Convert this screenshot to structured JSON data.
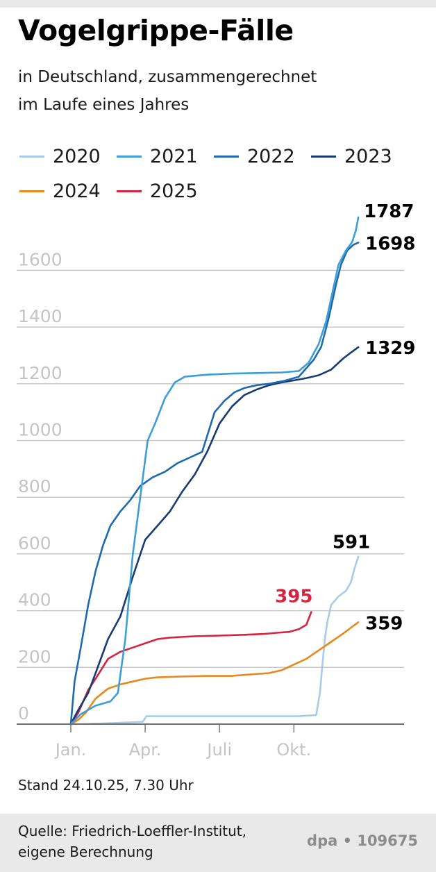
{
  "title": "Vogelgrippe-Fälle",
  "subtitle_line1": "in Deutschland, zusammengerechnet",
  "subtitle_line2": "im Laufe eines Jahres",
  "stand": "Stand 24.10.25, 7.30 Uhr",
  "source_line1": "Quelle: Friedrich-Loeffler-Institut,",
  "source_line2": "eigene Berechnung",
  "credit": "dpa • 109675",
  "chart_data": {
    "type": "line",
    "x_unit": "month",
    "xlim": [
      1,
      13
    ],
    "ylim": [
      0,
      1800
    ],
    "grid": true,
    "legend_placement": "top",
    "x_ticks": [
      {
        "label": "Jan.",
        "value": 1
      },
      {
        "label": "Apr.",
        "value": 4
      },
      {
        "label": "Juli",
        "value": 7
      },
      {
        "label": "Okt.",
        "value": 10
      }
    ],
    "y_ticks": [
      0,
      200,
      400,
      600,
      800,
      1000,
      1200,
      1400,
      1600
    ],
    "series": [
      {
        "name": "2020",
        "color": "#a9cbea",
        "end_label": "591",
        "end_label_color": "#000000",
        "points": [
          [
            1,
            0
          ],
          [
            2.2,
            2
          ],
          [
            3,
            5
          ],
          [
            3.9,
            8
          ],
          [
            4.05,
            28
          ],
          [
            5,
            28
          ],
          [
            7,
            28
          ],
          [
            9,
            28
          ],
          [
            10.2,
            28
          ],
          [
            10.9,
            32
          ],
          [
            11.05,
            110
          ],
          [
            11.15,
            210
          ],
          [
            11.25,
            300
          ],
          [
            11.35,
            360
          ],
          [
            11.5,
            420
          ],
          [
            11.8,
            450
          ],
          [
            12.1,
            470
          ],
          [
            12.3,
            500
          ],
          [
            12.45,
            550
          ],
          [
            12.6,
            591
          ]
        ]
      },
      {
        "name": "2021",
        "color": "#3a9fd8",
        "end_label": "",
        "end_label_color": "#000000",
        "points": [
          [
            1,
            0
          ],
          [
            1.4,
            35
          ],
          [
            2,
            65
          ],
          [
            2.6,
            80
          ],
          [
            2.9,
            110
          ],
          [
            3.2,
            300
          ],
          [
            3.5,
            600
          ],
          [
            3.8,
            800
          ],
          [
            4.1,
            1000
          ],
          [
            4.4,
            1060
          ],
          [
            4.8,
            1150
          ],
          [
            5.2,
            1205
          ],
          [
            5.6,
            1225
          ],
          [
            6.5,
            1232
          ],
          [
            7.5,
            1236
          ],
          [
            8.5,
            1238
          ],
          [
            9.5,
            1240
          ],
          [
            10.2,
            1245
          ],
          [
            10.6,
            1275
          ],
          [
            11,
            1340
          ],
          [
            11.3,
            1420
          ],
          [
            11.55,
            1520
          ],
          [
            11.8,
            1620
          ],
          [
            12.1,
            1670
          ],
          [
            12.35,
            1700
          ],
          [
            12.5,
            1740
          ],
          [
            12.6,
            1787
          ]
        ]
      },
      {
        "name": "2022",
        "color": "#1f69b0",
        "end_label": "1698",
        "end_label_color": "#000000",
        "points": [
          [
            1,
            0
          ],
          [
            1.15,
            150
          ],
          [
            1.4,
            270
          ],
          [
            1.7,
            420
          ],
          [
            2,
            540
          ],
          [
            2.3,
            630
          ],
          [
            2.6,
            700
          ],
          [
            3,
            750
          ],
          [
            3.4,
            790
          ],
          [
            3.8,
            840
          ],
          [
            4.3,
            870
          ],
          [
            4.8,
            890
          ],
          [
            5.3,
            920
          ],
          [
            5.8,
            940
          ],
          [
            6.3,
            960
          ],
          [
            6.8,
            1100
          ],
          [
            7.2,
            1140
          ],
          [
            7.6,
            1170
          ],
          [
            8,
            1185
          ],
          [
            8.5,
            1195
          ],
          [
            9,
            1200
          ],
          [
            9.6,
            1210
          ],
          [
            10.2,
            1225
          ],
          [
            10.8,
            1285
          ],
          [
            11.1,
            1330
          ],
          [
            11.4,
            1430
          ],
          [
            11.7,
            1550
          ],
          [
            11.9,
            1620
          ],
          [
            12.15,
            1670
          ],
          [
            12.4,
            1690
          ],
          [
            12.6,
            1698
          ]
        ]
      },
      {
        "name": "2023",
        "color": "#173a73",
        "end_label": "1329",
        "end_label_color": "#000000",
        "points": [
          [
            1,
            0
          ],
          [
            1.3,
            50
          ],
          [
            1.7,
            110
          ],
          [
            2,
            180
          ],
          [
            2.5,
            300
          ],
          [
            3,
            380
          ],
          [
            3.5,
            520
          ],
          [
            4,
            650
          ],
          [
            4.5,
            700
          ],
          [
            5,
            750
          ],
          [
            5.5,
            820
          ],
          [
            6,
            880
          ],
          [
            6.5,
            960
          ],
          [
            7,
            1060
          ],
          [
            7.5,
            1120
          ],
          [
            8,
            1160
          ],
          [
            8.5,
            1180
          ],
          [
            9,
            1195
          ],
          [
            9.5,
            1205
          ],
          [
            10,
            1212
          ],
          [
            10.5,
            1220
          ],
          [
            11,
            1230
          ],
          [
            11.5,
            1250
          ],
          [
            12,
            1290
          ],
          [
            12.3,
            1310
          ],
          [
            12.6,
            1329
          ]
        ]
      },
      {
        "name": "2024",
        "color": "#e8891e",
        "end_label": "359",
        "end_label_color": "#000000",
        "points": [
          [
            1,
            0
          ],
          [
            1.3,
            15
          ],
          [
            1.6,
            40
          ],
          [
            2,
            90
          ],
          [
            2.5,
            125
          ],
          [
            3,
            140
          ],
          [
            3.5,
            150
          ],
          [
            4,
            160
          ],
          [
            4.5,
            165
          ],
          [
            5.5,
            168
          ],
          [
            6.5,
            170
          ],
          [
            7.5,
            170
          ],
          [
            8.2,
            175
          ],
          [
            9,
            180
          ],
          [
            9.5,
            190
          ],
          [
            10,
            210
          ],
          [
            10.5,
            230
          ],
          [
            11,
            260
          ],
          [
            11.5,
            290
          ],
          [
            12,
            320
          ],
          [
            12.3,
            340
          ],
          [
            12.6,
            359
          ]
        ]
      },
      {
        "name": "2025",
        "color": "#d72340",
        "end_label": "395",
        "end_label_color": "#d72340",
        "points": [
          [
            1,
            0
          ],
          [
            1.3,
            40
          ],
          [
            1.7,
            120
          ],
          [
            2,
            160
          ],
          [
            2.5,
            230
          ],
          [
            3,
            255
          ],
          [
            3.5,
            270
          ],
          [
            4,
            285
          ],
          [
            4.5,
            300
          ],
          [
            5,
            305
          ],
          [
            6,
            310
          ],
          [
            7,
            312
          ],
          [
            8,
            315
          ],
          [
            8.8,
            318
          ],
          [
            9.3,
            322
          ],
          [
            9.8,
            325
          ],
          [
            10.2,
            335
          ],
          [
            10.5,
            350
          ],
          [
            10.7,
            395
          ]
        ]
      }
    ]
  }
}
